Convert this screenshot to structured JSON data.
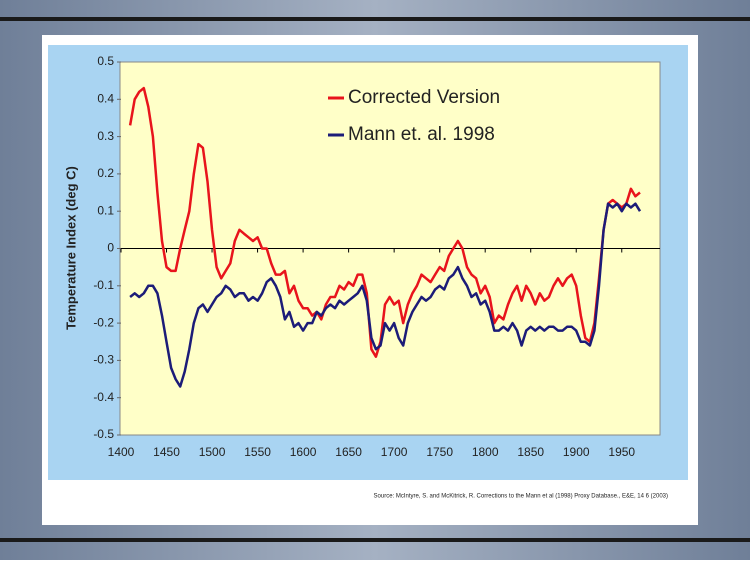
{
  "chart_data": {
    "type": "line",
    "y_label": "Temperature Index (deg C)",
    "source": "Source: McIntyre, S. and McKitrick, R. Corrections to the Mann et al (1998) Proxy Database., E&E, 14 6 (2003)",
    "xlim": [
      1400,
      1992
    ],
    "xticks": [
      1400,
      1450,
      1500,
      1550,
      1600,
      1650,
      1700,
      1750,
      1800,
      1850,
      1900,
      1950
    ],
    "ylim": [
      -0.5,
      0.5
    ],
    "yticks": [
      0.5,
      0.4,
      0.3,
      0.2,
      0.1,
      0,
      -0.1,
      -0.2,
      -0.3,
      -0.4,
      -0.5
    ],
    "x": [
      1410,
      1415,
      1420,
      1425,
      1430,
      1435,
      1440,
      1445,
      1450,
      1455,
      1460,
      1465,
      1470,
      1475,
      1480,
      1485,
      1490,
      1495,
      1500,
      1505,
      1510,
      1515,
      1520,
      1525,
      1530,
      1535,
      1540,
      1545,
      1550,
      1555,
      1560,
      1565,
      1570,
      1575,
      1580,
      1585,
      1590,
      1595,
      1600,
      1605,
      1610,
      1615,
      1620,
      1625,
      1630,
      1635,
      1640,
      1645,
      1650,
      1655,
      1660,
      1665,
      1670,
      1675,
      1680,
      1685,
      1690,
      1695,
      1700,
      1705,
      1710,
      1715,
      1720,
      1725,
      1730,
      1735,
      1740,
      1745,
      1750,
      1755,
      1760,
      1765,
      1770,
      1775,
      1780,
      1785,
      1790,
      1795,
      1800,
      1805,
      1810,
      1815,
      1820,
      1825,
      1830,
      1835,
      1840,
      1845,
      1850,
      1855,
      1860,
      1865,
      1870,
      1875,
      1880,
      1885,
      1890,
      1895,
      1900,
      1905,
      1910,
      1915,
      1920,
      1925,
      1930,
      1935,
      1940,
      1945,
      1950,
      1955,
      1960,
      1965,
      1970
    ],
    "series": [
      {
        "name": "Corrected Version",
        "color": "#e8141c",
        "values": [
          0.33,
          0.4,
          0.42,
          0.43,
          0.38,
          0.3,
          0.15,
          0.02,
          -0.05,
          -0.06,
          -0.06,
          0.0,
          0.05,
          0.1,
          0.2,
          0.28,
          0.27,
          0.18,
          0.05,
          -0.05,
          -0.08,
          -0.06,
          -0.04,
          0.02,
          0.05,
          0.04,
          0.03,
          0.02,
          0.03,
          0.0,
          0.0,
          -0.04,
          -0.07,
          -0.07,
          -0.06,
          -0.12,
          -0.1,
          -0.14,
          -0.16,
          -0.16,
          -0.18,
          -0.17,
          -0.19,
          -0.15,
          -0.13,
          -0.13,
          -0.1,
          -0.11,
          -0.09,
          -0.1,
          -0.07,
          -0.07,
          -0.12,
          -0.27,
          -0.29,
          -0.25,
          -0.15,
          -0.13,
          -0.15,
          -0.14,
          -0.2,
          -0.15,
          -0.12,
          -0.1,
          -0.07,
          -0.08,
          -0.09,
          -0.07,
          -0.05,
          -0.06,
          -0.02,
          0.0,
          0.02,
          0.0,
          -0.05,
          -0.07,
          -0.08,
          -0.12,
          -0.1,
          -0.13,
          -0.2,
          -0.18,
          -0.19,
          -0.15,
          -0.12,
          -0.1,
          -0.14,
          -0.1,
          -0.12,
          -0.15,
          -0.12,
          -0.14,
          -0.13,
          -0.1,
          -0.08,
          -0.1,
          -0.08,
          -0.07,
          -0.1,
          -0.18,
          -0.24,
          -0.25,
          -0.2,
          -0.08,
          0.05,
          0.12,
          0.13,
          0.12,
          0.11,
          0.12,
          0.16,
          0.14,
          0.15
        ]
      },
      {
        "name": "Mann et. al. 1998",
        "color": "#1c1c78",
        "values": [
          -0.13,
          -0.12,
          -0.13,
          -0.12,
          -0.1,
          -0.1,
          -0.12,
          -0.18,
          -0.25,
          -0.32,
          -0.35,
          -0.37,
          -0.33,
          -0.27,
          -0.2,
          -0.16,
          -0.15,
          -0.17,
          -0.15,
          -0.13,
          -0.12,
          -0.1,
          -0.11,
          -0.13,
          -0.12,
          -0.12,
          -0.14,
          -0.13,
          -0.14,
          -0.12,
          -0.09,
          -0.08,
          -0.1,
          -0.13,
          -0.19,
          -0.17,
          -0.21,
          -0.2,
          -0.22,
          -0.2,
          -0.2,
          -0.17,
          -0.18,
          -0.16,
          -0.15,
          -0.16,
          -0.14,
          -0.15,
          -0.14,
          -0.13,
          -0.12,
          -0.1,
          -0.14,
          -0.24,
          -0.27,
          -0.26,
          -0.2,
          -0.22,
          -0.2,
          -0.24,
          -0.26,
          -0.2,
          -0.17,
          -0.15,
          -0.13,
          -0.14,
          -0.13,
          -0.11,
          -0.1,
          -0.11,
          -0.08,
          -0.07,
          -0.05,
          -0.08,
          -0.1,
          -0.13,
          -0.12,
          -0.15,
          -0.14,
          -0.17,
          -0.22,
          -0.22,
          -0.21,
          -0.22,
          -0.2,
          -0.22,
          -0.26,
          -0.22,
          -0.21,
          -0.22,
          -0.21,
          -0.22,
          -0.21,
          -0.21,
          -0.22,
          -0.22,
          -0.21,
          -0.21,
          -0.22,
          -0.25,
          -0.25,
          -0.26,
          -0.22,
          -0.1,
          0.05,
          0.12,
          0.11,
          0.12,
          0.1,
          0.12,
          0.11,
          0.12,
          0.1
        ]
      }
    ]
  }
}
